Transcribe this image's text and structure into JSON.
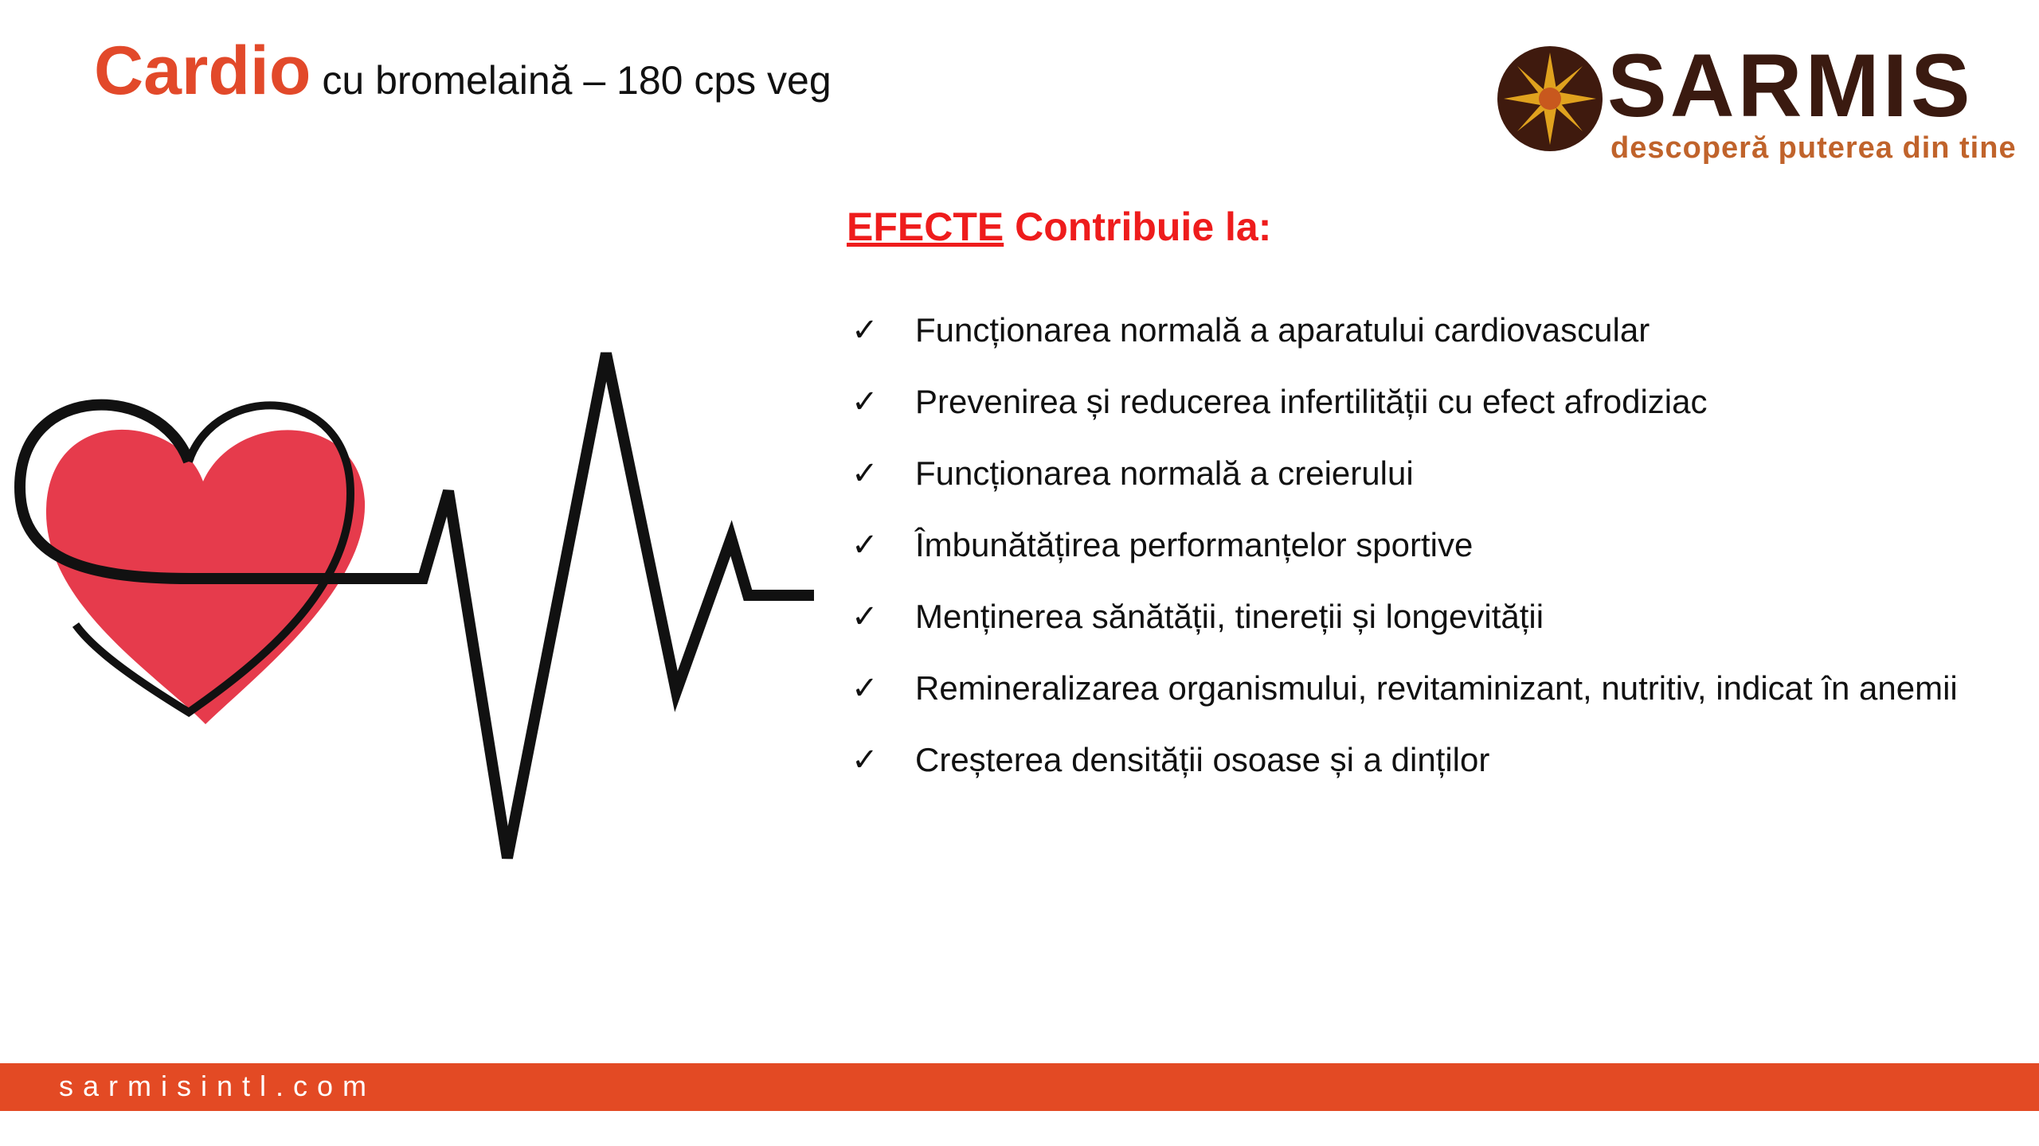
{
  "header": {
    "product_name": "Cardio",
    "product_subtitle": "cu bromelaină – 180 cps veg"
  },
  "logo": {
    "wordmark": "SARMIS",
    "tagline": "descoperă puterea din tine",
    "brand_color": "#3a1a10",
    "tagline_color": "#c0632b"
  },
  "effects": {
    "heading_underlined": "EFECTE",
    "heading_rest": "Contribuie la:",
    "check_icon": "check-icon",
    "items": [
      "Funcționarea normală a aparatului cardiovascular",
      "Prevenirea și reducerea infertilității cu efect afrodiziac",
      "Funcționarea normală a creierului",
      "Îmbunătățirea performanțelor sportive",
      "Menținerea sănătății, tinereții și longevității",
      "Remineralizarea organismului, revitaminizant, nutritiv, indicat în anemii",
      "Creșterea densității osoase și a dinților"
    ]
  },
  "footer": {
    "website": "sarmisintl.com",
    "color": "#e34a24"
  },
  "colors": {
    "accent": "#e2492a",
    "heading": "#ee1c1c",
    "heart": "#e63b4c"
  }
}
